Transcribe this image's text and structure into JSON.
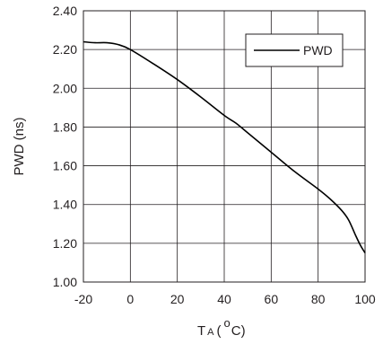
{
  "chart_data": {
    "type": "line",
    "title": "",
    "xlabel_main": "T",
    "xlabel_sub": "A",
    "xlabel_open": "(",
    "xlabel_deg": "o",
    "xlabel_unit": "C)",
    "ylabel": "PWD (ns)",
    "xlim": [
      -20,
      100
    ],
    "ylim": [
      1.0,
      2.4
    ],
    "grid": true,
    "legend_position": "top-right",
    "x_ticks": [
      "-20",
      "0",
      "20",
      "40",
      "60",
      "80",
      "100"
    ],
    "y_ticks": [
      "1.00",
      "1.20",
      "1.40",
      "1.60",
      "1.80",
      "2.00",
      "2.20",
      "2.40"
    ],
    "series": [
      {
        "name": "PWD",
        "color": "#000000",
        "x": [
          -20,
          -15,
          -10,
          -5,
          0,
          10,
          20,
          30,
          40,
          45,
          50,
          60,
          70,
          80,
          85,
          90,
          93,
          96,
          98,
          100
        ],
        "y": [
          2.24,
          2.235,
          2.235,
          2.225,
          2.2,
          2.125,
          2.045,
          1.955,
          1.86,
          1.82,
          1.77,
          1.67,
          1.57,
          1.48,
          1.43,
          1.37,
          1.32,
          1.24,
          1.19,
          1.15
        ]
      }
    ]
  }
}
